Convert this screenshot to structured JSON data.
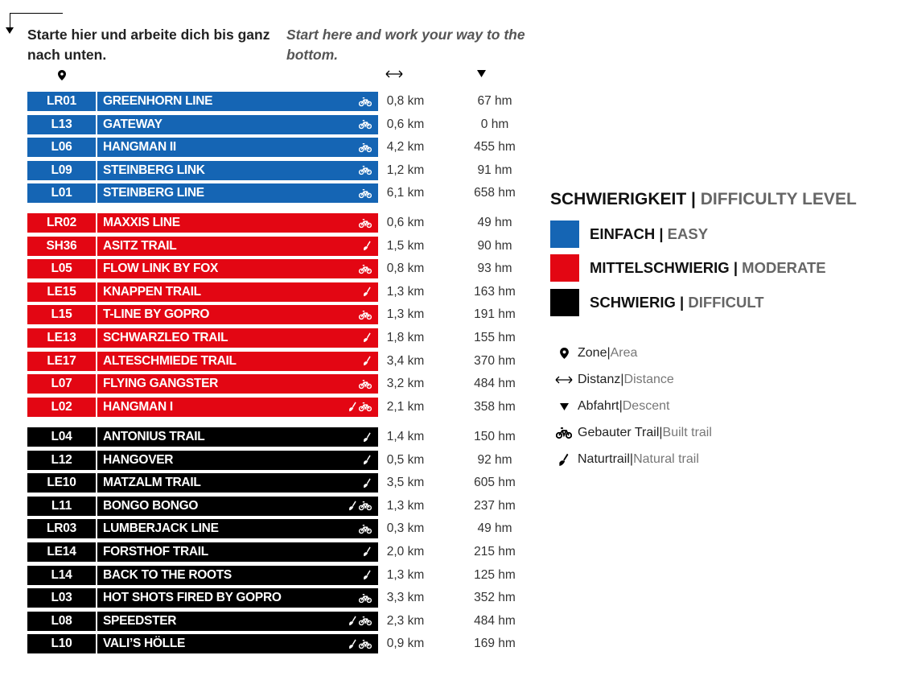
{
  "intro": {
    "de": "Starte hier und arbeite dich bis ganz nach unten.",
    "en": "Start here and work your way to the bottom."
  },
  "columns": {
    "zone_icon": "map-pin-icon",
    "distance_icon": "left-right-arrow-icon",
    "descent_icon": "down-triangle-icon"
  },
  "colors": {
    "easy": "#1565b4",
    "moderate": "#e30613",
    "difficult": "#000000"
  },
  "groups": [
    {
      "level": "easy",
      "trails": [
        {
          "code": "LR01",
          "name": "GREENHORN LINE",
          "icons": [
            "built"
          ],
          "distance": "0,8 km",
          "descent": "67 hm"
        },
        {
          "code": "L13",
          "name": "GATEWAY",
          "icons": [
            "built"
          ],
          "distance": "0,6 km",
          "descent": "0 hm"
        },
        {
          "code": "L06",
          "name": "HANGMAN II",
          "icons": [
            "built"
          ],
          "distance": "4,2 km",
          "descent": "455 hm"
        },
        {
          "code": "L09",
          "name": "STEINBERG LINK",
          "icons": [
            "built"
          ],
          "distance": "1,2 km",
          "descent": "91 hm"
        },
        {
          "code": "L01",
          "name": "STEINBERG LINE",
          "icons": [
            "built"
          ],
          "distance": "6,1 km",
          "descent": "658 hm"
        }
      ]
    },
    {
      "level": "moderate",
      "trails": [
        {
          "code": "LR02",
          "name": "MAXXIS LINE",
          "icons": [
            "built"
          ],
          "distance": "0,6 km",
          "descent": "49 hm"
        },
        {
          "code": "SH36",
          "name": "ASITZ TRAIL",
          "icons": [
            "natural"
          ],
          "distance": "1,5 km",
          "descent": "90 hm"
        },
        {
          "code": "L05",
          "name": "FLOW LINK BY FOX",
          "icons": [
            "built"
          ],
          "distance": "0,8 km",
          "descent": "93 hm"
        },
        {
          "code": "LE15",
          "name": "KNAPPEN TRAIL",
          "icons": [
            "natural"
          ],
          "distance": "1,3 km",
          "descent": "163 hm"
        },
        {
          "code": "L15",
          "name": "T-LINE BY GOPRO",
          "icons": [
            "built"
          ],
          "distance": "1,3 km",
          "descent": "191 hm"
        },
        {
          "code": "LE13",
          "name": "SCHWARZLEO TRAIL",
          "icons": [
            "natural"
          ],
          "distance": "1,8 km",
          "descent": "155 hm"
        },
        {
          "code": "LE17",
          "name": "ALTESCHMIEDE TRAIL",
          "icons": [
            "natural"
          ],
          "distance": "3,4 km",
          "descent": "370 hm"
        },
        {
          "code": "L07",
          "name": "FLYING GANGSTER",
          "icons": [
            "built"
          ],
          "distance": "3,2 km",
          "descent": "484 hm"
        },
        {
          "code": "L02",
          "name": "HANGMAN I",
          "icons": [
            "natural",
            "built"
          ],
          "distance": "2,1 km",
          "descent": "358 hm"
        }
      ]
    },
    {
      "level": "difficult",
      "trails": [
        {
          "code": "L04",
          "name": "ANTONIUS TRAIL",
          "icons": [
            "natural"
          ],
          "distance": "1,4 km",
          "descent": "150 hm"
        },
        {
          "code": "L12",
          "name": "HANGOVER",
          "icons": [
            "natural"
          ],
          "distance": "0,5 km",
          "descent": "92 hm"
        },
        {
          "code": "LE10",
          "name": "MATZALM TRAIL",
          "icons": [
            "natural"
          ],
          "distance": "3,5 km",
          "descent": "605 hm"
        },
        {
          "code": "L11",
          "name": "BONGO BONGO",
          "icons": [
            "natural",
            "built"
          ],
          "distance": "1,3 km",
          "descent": "237 hm"
        },
        {
          "code": "LR03",
          "name": "LUMBERJACK LINE",
          "icons": [
            "built"
          ],
          "distance": "0,3 km",
          "descent": "49 hm"
        },
        {
          "code": "LE14",
          "name": "FORSTHOF TRAIL",
          "icons": [
            "natural"
          ],
          "distance": "2,0 km",
          "descent": "215 hm"
        },
        {
          "code": "L14",
          "name": "BACK TO THE ROOTS",
          "icons": [
            "natural"
          ],
          "distance": "1,3 km",
          "descent": "125 hm"
        },
        {
          "code": "L03",
          "name": "HOT SHOTS FIRED BY GOPRO",
          "icons": [
            "built"
          ],
          "distance": "3,3 km",
          "descent": "352 hm"
        },
        {
          "code": "L08",
          "name": "SPEEDSTER",
          "icons": [
            "natural",
            "built"
          ],
          "distance": "2,3 km",
          "descent": "484 hm"
        },
        {
          "code": "L10",
          "name": "VALI’S HÖLLE",
          "icons": [
            "natural",
            "built"
          ],
          "distance": "0,9 km",
          "descent": "169 hm"
        }
      ]
    }
  ],
  "legend": {
    "title_de": "SCHWIERIGKEIT",
    "title_sep": " | ",
    "title_en": "DIFFICULTY LEVEL",
    "levels": [
      {
        "key": "easy",
        "de": "EINFACH",
        "en": "EASY"
      },
      {
        "key": "moderate",
        "de": "MITTELSCHWIERIG",
        "en": "MODERATE"
      },
      {
        "key": "difficult",
        "de": "SCHWIERIG",
        "en": "DIFFICULT"
      }
    ],
    "sep": " | ",
    "keys": [
      {
        "icon": "map-pin-icon",
        "de": "Zone",
        "en": "Area"
      },
      {
        "icon": "left-right-arrow-icon",
        "de": "Distanz",
        "en": "Distance"
      },
      {
        "icon": "down-triangle-icon",
        "de": "Abfahrt",
        "en": "Descent"
      },
      {
        "icon": "built-trail-icon",
        "de": "Gebauter Trail",
        "en": "Built trail"
      },
      {
        "icon": "natural-trail-icon",
        "de": "Naturtrail",
        "en": "Natural trail"
      }
    ]
  }
}
